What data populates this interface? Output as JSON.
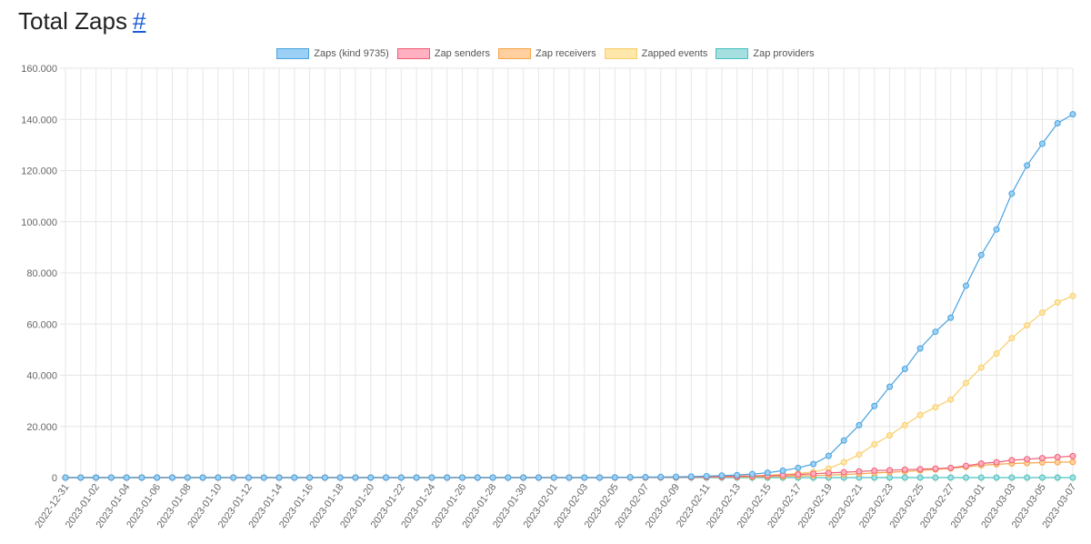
{
  "header": {
    "title": "Total Zaps",
    "anchor": "#"
  },
  "chart_data": {
    "type": "line",
    "title": "",
    "xlabel": "",
    "ylabel": "",
    "ylim": [
      0,
      160000
    ],
    "y_ticks": [
      "0",
      "20.000",
      "40.000",
      "60.000",
      "80.000",
      "100.000",
      "120.000",
      "140.000",
      "160.000"
    ],
    "y_tick_values": [
      0,
      20000,
      40000,
      60000,
      80000,
      100000,
      120000,
      140000,
      160000
    ],
    "grid": true,
    "legend_position": "top",
    "x": [
      "2022-12-31",
      "2023-01-01",
      "2023-01-02",
      "2023-01-03",
      "2023-01-04",
      "2023-01-05",
      "2023-01-06",
      "2023-01-07",
      "2023-01-08",
      "2023-01-09",
      "2023-01-10",
      "2023-01-11",
      "2023-01-12",
      "2023-01-13",
      "2023-01-14",
      "2023-01-15",
      "2023-01-16",
      "2023-01-17",
      "2023-01-18",
      "2023-01-19",
      "2023-01-20",
      "2023-01-21",
      "2023-01-22",
      "2023-01-23",
      "2023-01-24",
      "2023-01-25",
      "2023-01-26",
      "2023-01-27",
      "2023-01-28",
      "2023-01-29",
      "2023-01-30",
      "2023-01-31",
      "2023-02-01",
      "2023-02-02",
      "2023-02-03",
      "2023-02-04",
      "2023-02-05",
      "2023-02-06",
      "2023-02-07",
      "2023-02-08",
      "2023-02-09",
      "2023-02-10",
      "2023-02-11",
      "2023-02-12",
      "2023-02-13",
      "2023-02-14",
      "2023-02-15",
      "2023-02-16",
      "2023-02-17",
      "2023-02-18",
      "2023-02-19",
      "2023-02-20",
      "2023-02-21",
      "2023-02-22",
      "2023-02-23",
      "2023-02-24",
      "2023-02-25",
      "2023-02-26",
      "2023-02-27",
      "2023-02-28",
      "2023-03-01",
      "2023-03-02",
      "2023-03-03",
      "2023-03-04",
      "2023-03-05",
      "2023-03-06",
      "2023-03-07"
    ],
    "x_labels_shown": [
      "2022-12-31",
      "2023-01-02",
      "2023-01-04",
      "2023-01-06",
      "2023-01-08",
      "2023-01-10",
      "2023-01-12",
      "2023-01-14",
      "2023-01-16",
      "2023-01-18",
      "2023-01-20",
      "2023-01-22",
      "2023-01-24",
      "2023-01-26",
      "2023-01-28",
      "2023-01-30",
      "2023-02-01",
      "2023-02-03",
      "2023-02-05",
      "2023-02-07",
      "2023-02-09",
      "2023-02-11",
      "2023-02-13",
      "2023-02-15",
      "2023-02-17",
      "2023-02-19",
      "2023-02-21",
      "2023-02-23",
      "2023-02-25",
      "2023-02-27",
      "2023-03-01",
      "2023-03-03",
      "2023-03-05",
      "2023-03-07"
    ],
    "series": [
      {
        "name": "Zaps (kind 9735)",
        "color": "#4aa3df",
        "fill": "#9ad0f5",
        "values": [
          0,
          0,
          0,
          0,
          0,
          0,
          0,
          0,
          0,
          0,
          0,
          0,
          0,
          0,
          0,
          0,
          0,
          0,
          0,
          0,
          0,
          0,
          0,
          0,
          0,
          0,
          0,
          0,
          0,
          0,
          0,
          0,
          0,
          0,
          0,
          0,
          100,
          150,
          200,
          250,
          300,
          400,
          600,
          800,
          1000,
          1400,
          1900,
          2700,
          3800,
          5300,
          8500,
          14500,
          20500,
          28000,
          35500,
          42500,
          50500,
          57000,
          62500,
          75000,
          87000,
          97000,
          111000,
          122000,
          130500,
          138500,
          142000
        ]
      },
      {
        "name": "Zap senders",
        "color": "#ee5f76",
        "fill": "#ffb1c1",
        "values": [
          0,
          0,
          0,
          0,
          0,
          0,
          0,
          0,
          0,
          0,
          0,
          0,
          0,
          0,
          0,
          0,
          0,
          0,
          0,
          0,
          0,
          0,
          0,
          0,
          0,
          0,
          0,
          0,
          0,
          0,
          0,
          0,
          0,
          0,
          0,
          0,
          50,
          80,
          100,
          130,
          160,
          200,
          300,
          400,
          500,
          650,
          800,
          1000,
          1200,
          1500,
          1800,
          2100,
          2400,
          2700,
          2900,
          3100,
          3300,
          3500,
          3800,
          4600,
          5500,
          6000,
          6800,
          7200,
          7600,
          8000,
          8400
        ]
      },
      {
        "name": "Zap receivers",
        "color": "#f5a64c",
        "fill": "#ffcf9f",
        "values": [
          0,
          0,
          0,
          0,
          0,
          0,
          0,
          0,
          0,
          0,
          0,
          0,
          0,
          0,
          0,
          0,
          0,
          0,
          0,
          0,
          0,
          0,
          0,
          0,
          0,
          0,
          0,
          0,
          0,
          0,
          0,
          0,
          0,
          0,
          0,
          0,
          30,
          50,
          70,
          90,
          110,
          130,
          160,
          200,
          250,
          320,
          400,
          500,
          650,
          800,
          1000,
          1200,
          1500,
          1800,
          2100,
          2400,
          2800,
          3200,
          3600,
          4200,
          4800,
          5200,
          5500,
          5700,
          5900,
          6000,
          6100
        ]
      },
      {
        "name": "Zapped events",
        "color": "#f7cf6a",
        "fill": "#ffe6aa",
        "values": [
          0,
          0,
          0,
          0,
          0,
          0,
          0,
          0,
          0,
          0,
          0,
          0,
          0,
          0,
          0,
          0,
          0,
          0,
          0,
          0,
          0,
          0,
          0,
          0,
          0,
          0,
          0,
          0,
          0,
          0,
          0,
          0,
          0,
          0,
          0,
          0,
          50,
          80,
          120,
          160,
          200,
          260,
          350,
          450,
          550,
          700,
          900,
          1200,
          1600,
          2200,
          3500,
          6000,
          9000,
          13000,
          16500,
          20500,
          24500,
          27500,
          30500,
          37000,
          43000,
          48500,
          54500,
          59500,
          64500,
          68500,
          71000
        ]
      },
      {
        "name": "Zap providers",
        "color": "#4bc0c0",
        "fill": "#a5dfdf",
        "values": [
          0,
          0,
          0,
          0,
          0,
          0,
          0,
          0,
          0,
          0,
          0,
          0,
          0,
          0,
          0,
          0,
          0,
          0,
          0,
          0,
          0,
          0,
          0,
          0,
          0,
          0,
          0,
          0,
          0,
          0,
          0,
          0,
          0,
          0,
          0,
          0,
          0,
          0,
          0,
          0,
          0,
          0,
          0,
          0,
          0,
          0,
          0,
          0,
          0,
          0,
          0,
          0,
          0,
          0,
          0,
          0,
          0,
          0,
          0,
          0,
          0,
          0,
          0,
          0,
          0,
          0,
          0
        ]
      }
    ]
  }
}
